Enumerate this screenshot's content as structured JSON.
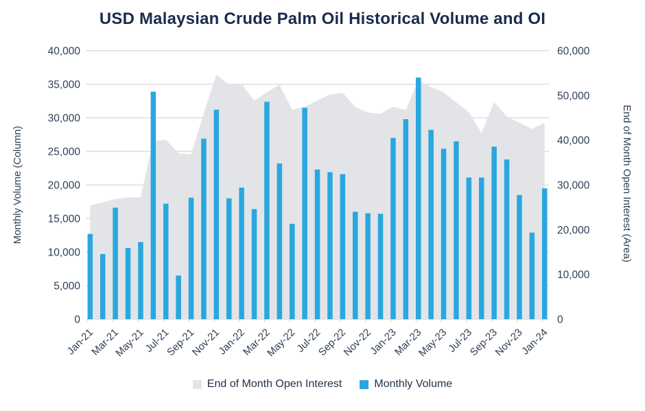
{
  "title": "USD Malaysian Crude Palm Oil Historical Volume and OI",
  "colors": {
    "bar": "#2aa7de",
    "area": "#e2e4e8",
    "gridline": "#c9cdd3",
    "text_dark": "#1a2b4c",
    "text_axis": "#2e3f55"
  },
  "chart_data": {
    "type": "combo-bar-area",
    "title": "USD Malaysian Crude Palm Oil Historical Volume and OI",
    "categories": [
      "Jan-21",
      "Feb-21",
      "Mar-21",
      "Apr-21",
      "May-21",
      "Jun-21",
      "Jul-21",
      "Aug-21",
      "Sep-21",
      "Oct-21",
      "Nov-21",
      "Dec-21",
      "Jan-22",
      "Feb-22",
      "Mar-22",
      "Apr-22",
      "May-22",
      "Jun-22",
      "Jul-22",
      "Aug-22",
      "Sep-22",
      "Oct-22",
      "Nov-22",
      "Dec-22",
      "Jan-23",
      "Feb-23",
      "Mar-23",
      "Apr-23",
      "May-23",
      "Jun-23",
      "Jul-23",
      "Aug-23",
      "Sep-23",
      "Oct-23",
      "Nov-23",
      "Dec-23",
      "Jan-24"
    ],
    "x_label_every": 2,
    "series": [
      {
        "name": "End of Month Open Interest",
        "type": "area",
        "axis": "right",
        "color": "#e2e4e8",
        "values": [
          25400,
          26100,
          26900,
          27200,
          27200,
          39800,
          40100,
          37100,
          36800,
          46000,
          54700,
          52300,
          52600,
          48800,
          50700,
          52400,
          46800,
          47500,
          48900,
          50200,
          50600,
          47400,
          46200,
          45900,
          47500,
          46700,
          53500,
          51900,
          50700,
          48400,
          46300,
          41600,
          48500,
          45300,
          43900,
          42500,
          43900
        ]
      },
      {
        "name": "Monthly Volume",
        "type": "bar",
        "axis": "left",
        "color": "#2aa7de",
        "values": [
          12700,
          9700,
          16600,
          10600,
          11500,
          33900,
          17200,
          6500,
          18100,
          26900,
          31200,
          18000,
          19600,
          16400,
          32400,
          23200,
          14200,
          31500,
          22300,
          21900,
          21600,
          16000,
          15800,
          15700,
          27000,
          29800,
          36000,
          28200,
          25400,
          26500,
          21100,
          21100,
          25700,
          23800,
          18500,
          12900,
          19500
        ]
      }
    ],
    "left_axis": {
      "title": "Monthly Volume (Column)",
      "min": 0,
      "max": 40000,
      "step": 5000
    },
    "right_axis": {
      "title": "End of Month Open Interest (Area)",
      "min": 0,
      "max": 60000,
      "step": 10000
    },
    "legend": [
      "End of Month Open Interest",
      "Monthly Volume"
    ],
    "grid": true,
    "legend_position": "bottom"
  }
}
